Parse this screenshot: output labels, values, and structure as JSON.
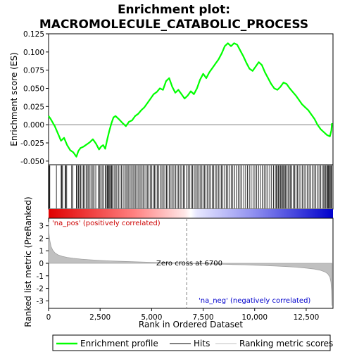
{
  "chart_data": {
    "type": "line",
    "title_line1": "Enrichment plot:",
    "title_line2": "MACROMOLECULE_CATABOLIC_PROCESS",
    "es_panel": {
      "ylabel": "Enrichment score (ES)",
      "ylim": [
        -0.055,
        0.125
      ],
      "yticks": [
        "-0.050",
        "-0.025",
        "0.000",
        "0.025",
        "0.050",
        "0.075",
        "0.100",
        "0.125"
      ],
      "ytick_values": [
        -0.05,
        -0.025,
        0,
        0.025,
        0.05,
        0.075,
        0.1,
        0.125
      ],
      "line_color": "#00ff00"
    },
    "rank_panel": {
      "ylabel": "Ranked list metric (PreRanked)",
      "ylim": [
        -3.6,
        3.6
      ],
      "yticks": [
        "3",
        "2",
        "1",
        "0",
        "-1",
        "-2",
        "-3"
      ],
      "ytick_values": [
        3,
        2,
        1,
        0,
        -1,
        -2,
        -3
      ],
      "zero_cross_label": "Zero cross at 6700",
      "pos_label": "'na_pos' (positively correlated)",
      "neg_label": "'na_neg' (negatively correlated)",
      "pos_color": "#cc0000",
      "neg_color": "#0000cc"
    },
    "xlabel": "Rank in Ordered Dataset",
    "xlim": [
      0,
      13800
    ],
    "xticks": [
      "0",
      "2,500",
      "5,000",
      "7,500",
      "10,000",
      "12,500"
    ],
    "xtick_values": [
      0,
      2500,
      5000,
      7500,
      10000,
      12500
    ],
    "zero_cross": 6700,
    "n_genes": 13750,
    "es_profile": {
      "x": [
        0,
        100,
        300,
        500,
        600,
        750,
        900,
        1050,
        1200,
        1350,
        1450,
        1550,
        1700,
        1850,
        2000,
        2150,
        2300,
        2450,
        2550,
        2650,
        2750,
        2850,
        2950,
        3050,
        3150,
        3250,
        3400,
        3600,
        3750,
        3900,
        4050,
        4200,
        4350,
        4500,
        4650,
        4800,
        4950,
        5100,
        5250,
        5400,
        5550,
        5700,
        5850,
        6000,
        6150,
        6300,
        6450,
        6600,
        6750,
        6900,
        7050,
        7200,
        7350,
        7500,
        7650,
        7800,
        7950,
        8100,
        8250,
        8400,
        8550,
        8700,
        8850,
        9000,
        9150,
        9300,
        9450,
        9600,
        9750,
        9900,
        10050,
        10200,
        10350,
        10500,
        10650,
        10800,
        10950,
        11100,
        11250,
        11400,
        11550,
        11700,
        11850,
        12000,
        12150,
        12300,
        12450,
        12600,
        12750,
        12900,
        13050,
        13200,
        13350,
        13500,
        13650,
        13720,
        13750
      ],
      "y": [
        0.012,
        0.008,
        -0.002,
        -0.015,
        -0.022,
        -0.018,
        -0.028,
        -0.035,
        -0.038,
        -0.044,
        -0.036,
        -0.032,
        -0.03,
        -0.027,
        -0.024,
        -0.02,
        -0.026,
        -0.034,
        -0.03,
        -0.028,
        -0.033,
        -0.02,
        -0.008,
        0.002,
        0.01,
        0.012,
        0.008,
        0.002,
        -0.002,
        0.004,
        0.006,
        0.012,
        0.015,
        0.02,
        0.024,
        0.03,
        0.036,
        0.042,
        0.045,
        0.05,
        0.048,
        0.06,
        0.064,
        0.052,
        0.044,
        0.048,
        0.042,
        0.036,
        0.04,
        0.046,
        0.042,
        0.05,
        0.062,
        0.07,
        0.064,
        0.072,
        0.078,
        0.084,
        0.09,
        0.098,
        0.108,
        0.112,
        0.108,
        0.112,
        0.11,
        0.102,
        0.094,
        0.085,
        0.077,
        0.074,
        0.08,
        0.086,
        0.082,
        0.072,
        0.064,
        0.056,
        0.05,
        0.048,
        0.052,
        0.058,
        0.056,
        0.05,
        0.045,
        0.04,
        0.034,
        0.028,
        0.024,
        0.02,
        0.014,
        0.008,
        0.0,
        -0.006,
        -0.01,
        -0.014,
        -0.016,
        -0.008,
        0.002
      ]
    },
    "hit_ranks": [
      30,
      60,
      380,
      610,
      640,
      680,
      800,
      830,
      880,
      1120,
      1180,
      1350,
      1390,
      1450,
      1510,
      1560,
      1620,
      1690,
      1750,
      1820,
      1880,
      1940,
      2010,
      2080,
      2150,
      2210,
      2290,
      2410,
      2470,
      2530,
      2600,
      2680,
      2750,
      2800,
      2850,
      2890,
      2930,
      2970,
      3020,
      3060,
      3100,
      3180,
      3250,
      3310,
      3390,
      3460,
      3540,
      3620,
      3700,
      3760,
      3830,
      3890,
      3960,
      4030,
      4100,
      4160,
      4230,
      4300,
      4370,
      4440,
      4500,
      4580,
      4640,
      4720,
      4790,
      4860,
      4930,
      5000,
      5070,
      5140,
      5210,
      5280,
      5350,
      5420,
      5500,
      5570,
      5640,
      5720,
      5790,
      5860,
      5940,
      6010,
      6080,
      6160,
      6240,
      6310,
      6390,
      6460,
      6540,
      6610,
      6690,
      6770,
      6840,
      6920,
      6990,
      7070,
      7140,
      7210,
      7280,
      7350,
      7420,
      7490,
      7560,
      7640,
      7710,
      7790,
      7860,
      7940,
      8010,
      8090,
      8160,
      8240,
      8310,
      8390,
      8460,
      8540,
      8620,
      8700,
      8780,
      8860,
      8940,
      9030,
      9110,
      9200,
      9290,
      9380,
      9470,
      9560,
      9650,
      9740,
      9830,
      9920,
      10010,
      10100,
      10190,
      10280,
      10370,
      10460,
      10550,
      10640,
      10730,
      10820,
      10910,
      11000,
      11050,
      11100,
      11150,
      11200,
      11250,
      11300,
      11350,
      11400,
      11450,
      11500,
      11560,
      11620,
      11680,
      11740,
      11800,
      11870,
      11940,
      12010,
      12080,
      12160,
      12240,
      12320,
      12400,
      12480,
      12560,
      12640,
      12720,
      12800,
      12880,
      12960,
      13040,
      13120,
      13200,
      13280,
      13350,
      13400,
      13450,
      13500,
      13540,
      13580,
      13620,
      13660,
      13700,
      13730
    ],
    "ranked_metric": {
      "x": [
        0,
        20,
        60,
        120,
        200,
        300,
        450,
        650,
        900,
        1200,
        1600,
        2000,
        2500,
        3000,
        3500,
        4000,
        4500,
        5000,
        5500,
        6000,
        6400,
        6700,
        7000,
        7500,
        8000,
        8500,
        9000,
        9500,
        10000,
        10500,
        11000,
        11500,
        12000,
        12500,
        12900,
        13200,
        13400,
        13550,
        13650,
        13700,
        13730,
        13750
      ],
      "y": [
        3.3,
        2.4,
        1.8,
        1.35,
        1.05,
        0.85,
        0.68,
        0.56,
        0.47,
        0.4,
        0.33,
        0.28,
        0.23,
        0.19,
        0.16,
        0.13,
        0.1,
        0.08,
        0.06,
        0.04,
        0.02,
        0.0,
        -0.02,
        -0.04,
        -0.06,
        -0.08,
        -0.1,
        -0.12,
        -0.15,
        -0.18,
        -0.22,
        -0.26,
        -0.31,
        -0.38,
        -0.46,
        -0.56,
        -0.68,
        -0.85,
        -1.1,
        -1.5,
        -2.2,
        -3.4
      ]
    },
    "legend": [
      {
        "label": "Enrichment profile",
        "color": "#00ff00",
        "kind": "line"
      },
      {
        "label": "Hits",
        "color": "#000000",
        "kind": "line"
      },
      {
        "label": "Ranking metric scores",
        "color": "#c0c0c0",
        "kind": "line"
      }
    ],
    "legend_position": "bottom"
  }
}
